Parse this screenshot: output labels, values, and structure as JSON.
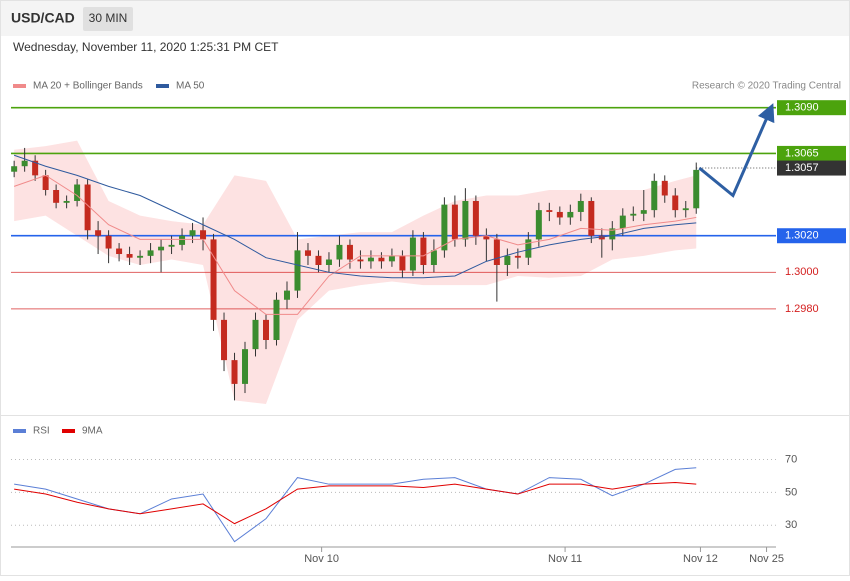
{
  "chart_data": [
    {
      "type": "candlestick",
      "title": "USD/CAD",
      "subtitle": "30 MIN",
      "date_text": "Wednesday, November 11, 2020 1:25:31 PM CET",
      "credit": "Research © 2020 Trading Central",
      "up_color": "#3b8c2f",
      "down_color": "#c42a1f",
      "open": [
        1.3055,
        1.3058,
        1.3061,
        1.3053,
        1.3045,
        1.3038,
        1.3039,
        1.3048,
        1.3023,
        1.302,
        1.3013,
        1.301,
        1.3008,
        1.3009,
        1.3012,
        1.3014,
        1.3015,
        1.302,
        1.3023,
        1.3018,
        1.2974,
        1.2952,
        1.2939,
        1.2958,
        1.2974,
        1.2963,
        1.2985,
        1.299,
        1.3012,
        1.3009,
        1.3004,
        1.3007,
        1.3015,
        1.3007,
        1.3006,
        1.3008,
        1.3006,
        1.3009,
        1.3001,
        1.3019,
        1.3004,
        1.3012,
        1.3037,
        1.3018,
        1.3039,
        1.302,
        1.3018,
        1.3004,
        1.3009,
        1.3008,
        1.3018,
        1.3034,
        1.3033,
        1.303,
        1.3033,
        1.3039,
        1.302,
        1.3018,
        1.3024,
        1.3031,
        1.3032,
        1.3034,
        1.305,
        1.3042,
        1.3034,
        1.3035
      ],
      "high": [
        1.3061,
        1.3068,
        1.3064,
        1.3056,
        1.3048,
        1.3042,
        1.3051,
        1.3051,
        1.3028,
        1.3023,
        1.3016,
        1.3014,
        1.3012,
        1.3016,
        1.3018,
        1.302,
        1.3024,
        1.3027,
        1.303,
        1.3021,
        1.2978,
        1.2956,
        1.2962,
        1.2978,
        1.2977,
        1.2989,
        1.2995,
        1.3022,
        1.3016,
        1.3012,
        1.3011,
        1.302,
        1.3018,
        1.3012,
        1.3012,
        1.3011,
        1.3013,
        1.3012,
        1.3023,
        1.3022,
        1.3018,
        1.3041,
        1.3042,
        1.3046,
        1.3042,
        1.3024,
        1.3021,
        1.3013,
        1.3013,
        1.3022,
        1.3038,
        1.3038,
        1.3036,
        1.3037,
        1.3043,
        1.3041,
        1.3024,
        1.3028,
        1.3035,
        1.3036,
        1.3045,
        1.3054,
        1.3053,
        1.3046,
        1.3039,
        1.306
      ],
      "low": [
        1.3052,
        1.3055,
        1.305,
        1.3042,
        1.3035,
        1.3035,
        1.3036,
        1.3018,
        1.301,
        1.3005,
        1.3006,
        1.3004,
        1.3004,
        1.3005,
        1.3,
        1.301,
        1.3012,
        1.3016,
        1.3012,
        1.2968,
        1.2946,
        1.293,
        1.2934,
        1.2954,
        1.2958,
        1.296,
        1.298,
        1.2986,
        1.3004,
        1.3,
        1.3,
        1.3003,
        1.3002,
        1.3002,
        1.3002,
        1.3002,
        1.3003,
        1.2997,
        1.2998,
        1.2999,
        1.3,
        1.3008,
        1.3014,
        1.3014,
        1.3015,
        1.3006,
        1.2984,
        1.2998,
        1.3002,
        1.3004,
        1.3014,
        1.3028,
        1.3026,
        1.3026,
        1.3028,
        1.3016,
        1.3008,
        1.3012,
        1.302,
        1.3028,
        1.3028,
        1.303,
        1.3038,
        1.303,
        1.303,
        1.3032
      ],
      "close": [
        1.3058,
        1.3061,
        1.3053,
        1.3045,
        1.3038,
        1.3039,
        1.3048,
        1.3023,
        1.302,
        1.3013,
        1.301,
        1.3008,
        1.3009,
        1.3012,
        1.3014,
        1.3015,
        1.302,
        1.3023,
        1.3018,
        1.2974,
        1.2952,
        1.2939,
        1.2958,
        1.2974,
        1.2963,
        1.2985,
        1.299,
        1.3012,
        1.3009,
        1.3004,
        1.3007,
        1.3015,
        1.3007,
        1.3006,
        1.3008,
        1.3006,
        1.3009,
        1.3001,
        1.3019,
        1.3004,
        1.3012,
        1.3037,
        1.3018,
        1.3039,
        1.302,
        1.3018,
        1.3004,
        1.3009,
        1.3008,
        1.3018,
        1.3034,
        1.3033,
        1.303,
        1.3033,
        1.3039,
        1.302,
        1.3018,
        1.3024,
        1.3031,
        1.3032,
        1.3034,
        1.305,
        1.3042,
        1.3034,
        1.3035,
        1.3056
      ],
      "indicator_x": [
        0,
        3,
        6,
        9,
        12,
        15,
        18,
        21,
        24,
        27,
        30,
        33,
        36,
        39,
        42,
        45,
        48,
        51,
        54,
        57,
        60,
        63,
        65
      ],
      "bollinger_upper": [
        1.3067,
        1.3069,
        1.3072,
        1.3039,
        1.3031,
        1.3028,
        1.3026,
        1.3053,
        1.305,
        1.3018,
        1.302,
        1.3022,
        1.3022,
        1.3031,
        1.3039,
        1.3042,
        1.3042,
        1.3045,
        1.3045,
        1.3045,
        1.3045,
        1.305,
        1.3053
      ],
      "bollinger_lower": [
        1.3028,
        1.3031,
        1.302,
        1.3009,
        1.3004,
        1.3007,
        1.3004,
        1.293,
        1.2928,
        1.2974,
        1.299,
        1.2993,
        1.2995,
        1.2993,
        1.2993,
        1.2993,
        1.2998,
        1.2997,
        1.2998,
        1.3007,
        1.3009,
        1.3012,
        1.3013
      ],
      "band_color": "#fde2e2",
      "series": [
        {
          "name": "MA 20 + Bollinger Bands",
          "color": "#f08a8a",
          "values": [
            1.3047,
            1.3053,
            1.3042,
            1.3026,
            1.3018,
            1.3018,
            1.3018,
            1.299,
            1.2977,
            1.2977,
            1.2998,
            1.3009,
            1.3009,
            1.3009,
            1.3018,
            1.302,
            1.3015,
            1.3018,
            1.3024,
            1.3023,
            1.3026,
            1.3028,
            1.303
          ]
        },
        {
          "name": "MA 50",
          "color": "#2f5a9e",
          "values": [
            1.3064,
            1.3058,
            1.3053,
            1.3047,
            1.3042,
            1.3034,
            1.3026,
            1.3018,
            1.3008,
            1.3004,
            1.3,
            1.2998,
            1.2997,
            1.2997,
            1.2998,
            1.3006,
            1.3011,
            1.3015,
            1.3018,
            1.302,
            1.3024,
            1.3026,
            1.3027
          ]
        }
      ],
      "levels": [
        {
          "value": 1.309,
          "label": "1.3090",
          "color": "#4ca30d",
          "style": "box"
        },
        {
          "value": 1.3065,
          "label": "1.3065",
          "color": "#4ca30d",
          "style": "box"
        },
        {
          "value": 1.3057,
          "label": "1.3057",
          "color": "#333333",
          "style": "current"
        },
        {
          "value": 1.302,
          "label": "1.3020",
          "color": "#2563eb",
          "style": "box"
        },
        {
          "value": 1.3,
          "label": "1.3000",
          "color": "#d42020",
          "style": "text"
        },
        {
          "value": 1.298,
          "label": "1.2980",
          "color": "#d42020",
          "style": "text"
        }
      ],
      "projection": {
        "x": [
          65.3,
          68.5,
          72
        ],
        "y": [
          1.3057,
          1.3042,
          1.3088
        ],
        "color": "#2e5fa3"
      },
      "xlim": [
        -0.3,
        72.6
      ],
      "ylim": [
        1.2922,
        1.3127
      ]
    },
    {
      "type": "line",
      "x": [
        0,
        3,
        6,
        9,
        12,
        15,
        18,
        21,
        24,
        27,
        30,
        33,
        36,
        39,
        42,
        45,
        48,
        51,
        54,
        57,
        60,
        63,
        65
      ],
      "series": [
        {
          "name": "RSI",
          "color": "#5b7fd6",
          "values": [
            55,
            52,
            46,
            40,
            37,
            46,
            49,
            20,
            34,
            59,
            55,
            55,
            55,
            58,
            59,
            52,
            49,
            59,
            58,
            48,
            55,
            64,
            65
          ]
        },
        {
          "name": "9MA",
          "color": "#e00000",
          "values": [
            52,
            49,
            44,
            40,
            37,
            40,
            43,
            31,
            40,
            52,
            54,
            54,
            54,
            53,
            55,
            52,
            49,
            55,
            55,
            52,
            55,
            56,
            55
          ]
        }
      ],
      "xlim": [
        -0.3,
        72.6
      ],
      "ylim": [
        18,
        91
      ],
      "yticks": [
        30,
        50,
        70
      ],
      "grid": true,
      "xticks": [
        {
          "value": 29.3,
          "label": "Nov 10"
        },
        {
          "value": 52.5,
          "label": "Nov 11"
        },
        {
          "value": 65.4,
          "label": "Nov 12"
        },
        {
          "value": 71.7,
          "label": "Nov 25"
        }
      ]
    }
  ]
}
